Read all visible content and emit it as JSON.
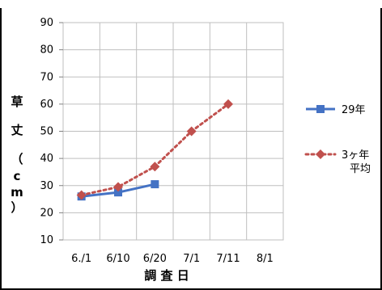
{
  "chart_data": {
    "type": "line",
    "title": "",
    "xlabel": "調 査 日",
    "ylabel": "草丈（cm）",
    "ylabel_parts": [
      "草",
      "丈",
      "（",
      "c",
      "m",
      "）"
    ],
    "categories": [
      "6./1",
      "6/10",
      "6/20",
      "7/1",
      "7/11",
      "8/1"
    ],
    "y_ticks": [
      "10",
      "20",
      "30",
      "40",
      "50",
      "60",
      "70",
      "80",
      "90"
    ],
    "ylim": [
      10,
      90
    ],
    "grid": true,
    "legend_position": "right",
    "series": [
      {
        "name": "29年",
        "legend_lines": [
          "29年"
        ],
        "values": [
          26,
          27.5,
          30.5,
          null,
          null,
          null
        ],
        "color": "#4472C4",
        "marker": "square",
        "line_style": "solid"
      },
      {
        "name": "3ヶ年平均",
        "legend_lines": [
          "3ヶ年",
          "平均"
        ],
        "values": [
          26.5,
          29.5,
          37,
          50,
          60,
          null
        ],
        "color": "#C0504D",
        "marker": "diamond",
        "line_style": "dotted"
      }
    ]
  }
}
